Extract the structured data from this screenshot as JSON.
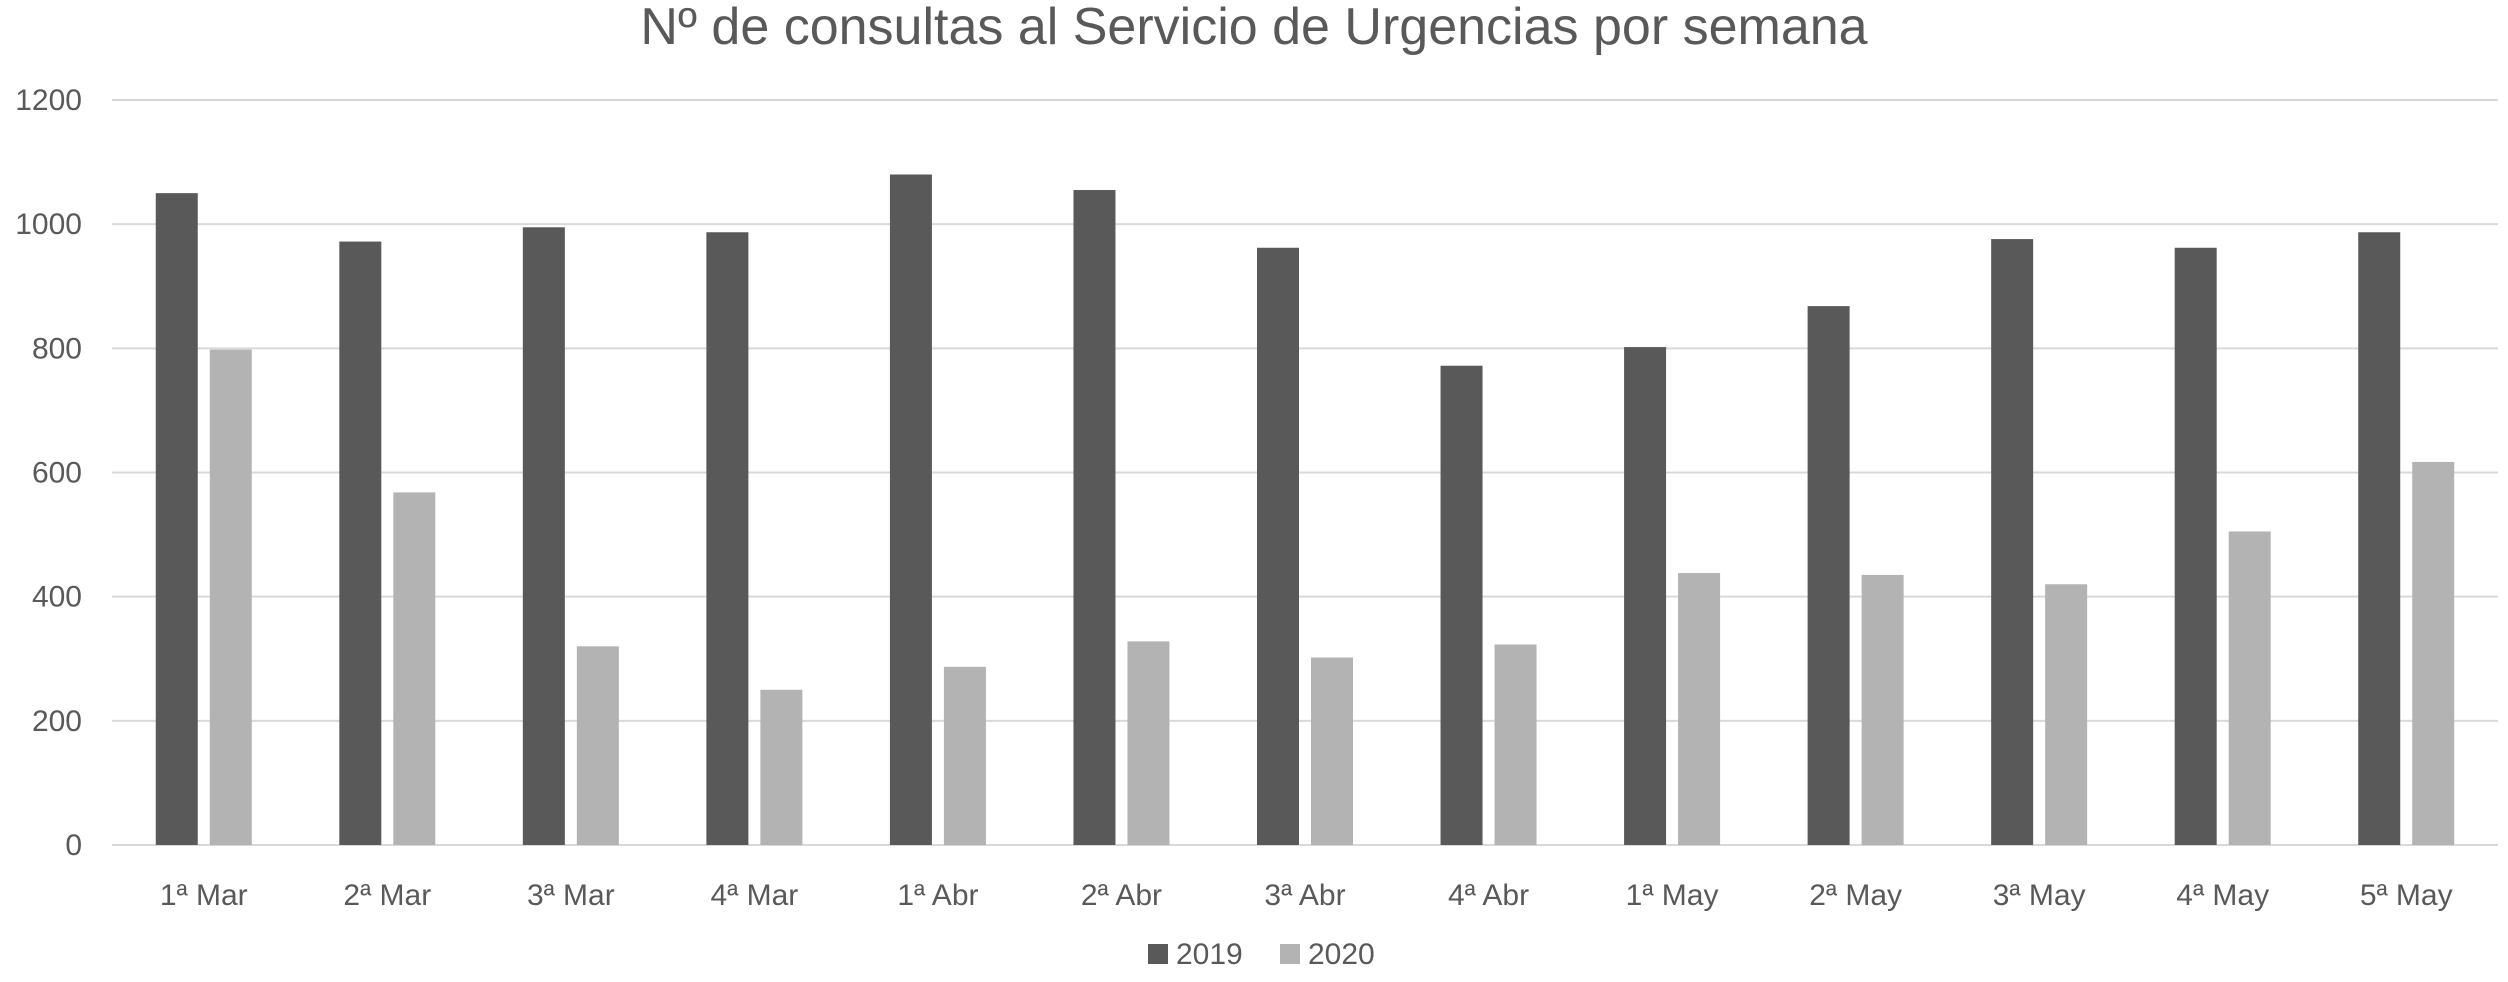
{
  "chart_data": {
    "type": "bar",
    "title": "Nº de consultas al Servicio de Urgencias por semana",
    "xlabel": "",
    "ylabel": "",
    "categories": [
      "1ª Mar",
      "2ª Mar",
      "3ª Mar",
      "4ª Mar",
      "1ª Abr",
      "2ª Abr",
      "3ª Abr",
      "4ª Abr",
      "1ª May",
      "2ª May",
      "3ª May",
      "4ª May",
      "5ª May"
    ],
    "series": [
      {
        "name": "2019",
        "color": "#595959",
        "values": [
          1050,
          972,
          995,
          987,
          1080,
          1055,
          962,
          772,
          802,
          868,
          976,
          962,
          987
        ]
      },
      {
        "name": "2020",
        "color": "#b3b3b3",
        "values": [
          798,
          568,
          320,
          250,
          287,
          328,
          302,
          323,
          438,
          435,
          420,
          505,
          617
        ]
      }
    ],
    "ylim": [
      0,
      1200
    ],
    "yticks": [
      0,
      200,
      400,
      600,
      800,
      1000,
      1200
    ],
    "grid": true,
    "legend_position": "bottom"
  }
}
